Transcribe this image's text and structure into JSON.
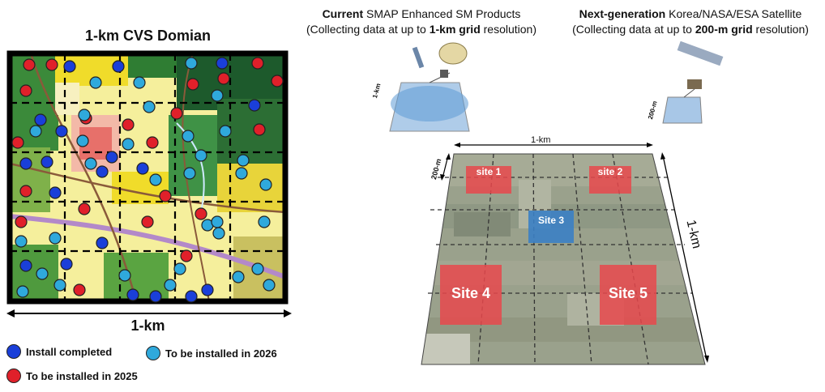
{
  "left_panel": {
    "title": "1-km CVS Domian",
    "scale_label": "1-km"
  },
  "legend": {
    "completed": {
      "label": "Install completed",
      "color": "#1a3fd9"
    },
    "install_2026": {
      "label": "To be installed in 2026",
      "color": "#2fa9dc"
    },
    "install_2025": {
      "label": "To be installed in 2025",
      "color": "#e0202a"
    }
  },
  "header_current": {
    "bold": "Current",
    "rest": " SMAP Enhanced SM Products",
    "line2_pre": "(Collecting data at up to ",
    "line2_bold": "1-km grid",
    "line2_post": " resolution)"
  },
  "header_next": {
    "bold": "Next-generation",
    "rest": " Korea/NASA/ESA Satellite",
    "line2_pre": "(Collecting data at up to ",
    "line2_bold": "200-m grid",
    "line2_post": " resolution)"
  },
  "footprints": {
    "current_label": "1-km",
    "next_label": "200-m"
  },
  "right_panel": {
    "top_label": "1-km",
    "right_label": "1-km",
    "cell_label": "200-m",
    "sites": [
      "site 1",
      "site 2",
      "Site 3",
      "Site 4",
      "Site 5"
    ]
  },
  "colors": {
    "site_red": "#e8484c",
    "site_blue": "#3b7fc4",
    "frame": "#000000"
  }
}
